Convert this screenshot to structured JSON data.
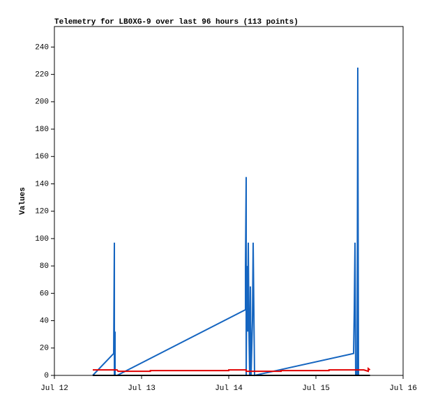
{
  "chart_data": {
    "type": "line",
    "title": "Telemetry for LB0XG-9 over last 96 hours (113 points)",
    "y_label": "Values",
    "xlim": [
      12,
      16
    ],
    "xticks": [
      {
        "value": 12,
        "label": "Jul 12"
      },
      {
        "value": 13,
        "label": "Jul 13"
      },
      {
        "value": 14,
        "label": "Jul 14"
      },
      {
        "value": 15,
        "label": "Jul 15"
      },
      {
        "value": 16,
        "label": "Jul 16"
      }
    ],
    "ylim": [
      0,
      255
    ],
    "yticks": [
      0,
      20,
      40,
      60,
      80,
      100,
      120,
      140,
      160,
      180,
      200,
      220,
      240
    ],
    "grid": false,
    "series": [
      {
        "color": "#1565c0",
        "x": [
          12.44,
          12.68,
          12.688,
          12.688,
          12.696,
          12.696,
          12.72,
          14.192,
          14.192,
          14.2,
          14.2,
          14.208,
          14.216,
          14.224,
          14.232,
          14.24,
          14.248,
          14.256,
          14.272,
          14.28,
          14.288,
          14.296,
          15.432,
          15.44,
          15.448,
          15.456,
          15.472,
          15.48,
          15.488
        ],
        "values": [
          0,
          16,
          97,
          0,
          32,
          0,
          0,
          48,
          80,
          145,
          0,
          80,
          32,
          97,
          32,
          0,
          65,
          0,
          40,
          97,
          48,
          0,
          16,
          48,
          97,
          0,
          0,
          225,
          0
        ]
      },
      {
        "color": "#e00000",
        "x": [
          12.44,
          12.72,
          12.73,
          13.1,
          13.1,
          14.0,
          14.0,
          14.2,
          14.2,
          14.6,
          14.6,
          15.15,
          15.15,
          15.55,
          15.6,
          15.6,
          15.62
        ],
        "values": [
          4,
          4,
          3,
          3,
          3.5,
          3.5,
          4,
          4,
          3,
          3,
          3.5,
          3.5,
          4,
          4,
          3,
          5,
          4
        ]
      },
      {
        "color": "#000000",
        "x": [
          12.44,
          15.62
        ],
        "values": [
          0,
          0
        ]
      }
    ]
  }
}
